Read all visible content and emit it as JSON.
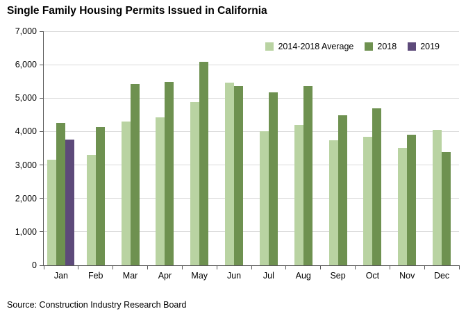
{
  "title": "Single Family Housing Permits Issued in California",
  "source": "Source: Construction Industry Research Board",
  "chart_data": {
    "type": "bar",
    "title": "Single Family Housing Permits Issued in California",
    "categories": [
      "Jan",
      "Feb",
      "Mar",
      "Apr",
      "May",
      "Jun",
      "Jul",
      "Aug",
      "Sep",
      "Oct",
      "Nov",
      "Dec"
    ],
    "series": [
      {
        "name": "2014-2018 Average",
        "color": "#b9d3a2",
        "values": [
          3150,
          3310,
          4290,
          4420,
          4880,
          5470,
          4000,
          4190,
          3740,
          3840,
          3520,
          4050
        ]
      },
      {
        "name": "2018",
        "color": "#6e9150",
        "values": [
          4250,
          4140,
          5430,
          5480,
          6080,
          5350,
          5170,
          5360,
          4480,
          4690,
          3910,
          3390
        ]
      },
      {
        "name": "2019",
        "color": "#5d4a7a",
        "values": [
          3760,
          null,
          null,
          null,
          null,
          null,
          null,
          null,
          null,
          null,
          null,
          null
        ]
      }
    ],
    "xlabel": "",
    "ylabel": "",
    "ylim": [
      0,
      7000
    ],
    "ytick_step": 1000,
    "ytick_labels": [
      "0",
      "1,000",
      "2,000",
      "3,000",
      "4,000",
      "5,000",
      "6,000",
      "7,000"
    ],
    "grid": true,
    "legend_position": "top-right-inside"
  }
}
